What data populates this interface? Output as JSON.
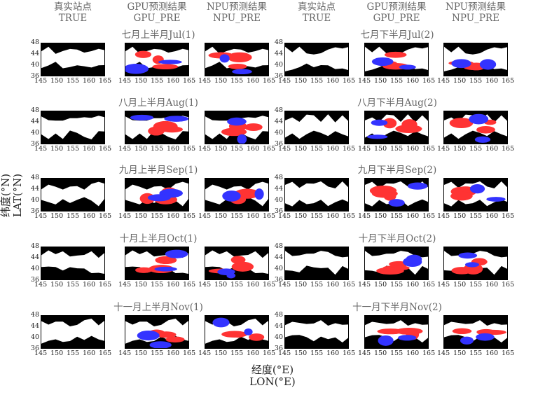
{
  "column_headers": [
    {
      "cn": "真实站点",
      "en": "TRUE"
    },
    {
      "cn": "GPU预测结果",
      "en": "GPU_PRE"
    },
    {
      "cn": "NPU预测结果",
      "en": "NPU_PRE"
    },
    {
      "cn": "真实站点",
      "en": "TRUE"
    },
    {
      "cn": "GPU预测结果",
      "en": "GPU_PRE"
    },
    {
      "cn": "NPU预测结果",
      "en": "NPU_PRE"
    }
  ],
  "chart_data": {
    "type": "heatmap",
    "y_axis": {
      "label_cn": "纬度(°N)",
      "label_en": "LAT(°N)",
      "ticks": [
        36,
        40,
        44,
        48
      ],
      "range": [
        36,
        48
      ]
    },
    "x_axis": {
      "label_cn": "经度(°E)",
      "label_en": "LON(°E)",
      "ticks": [
        145,
        150,
        155,
        160,
        165
      ],
      "range": [
        145,
        165
      ]
    },
    "colors": {
      "background": "#000000",
      "station": "#ffffff",
      "overestimate": "#ff3333",
      "underestimate": "#3333ff"
    },
    "periods": [
      {
        "left": "七月上半月Jul(1)",
        "right": "七月下半月Jul(2)"
      },
      {
        "left": "八月上半月Aug(1)",
        "right": "八月下半月Aug(2)"
      },
      {
        "left": "九月上半月Sep(1)",
        "right": "九月下半月Sep(2)"
      },
      {
        "left": "十月上半月Oct(1)",
        "right": "十月下半月Oct(2)"
      },
      {
        "left": "十一月上半月Nov(1)",
        "right": "十一月下半月Nov(2)"
      }
    ]
  }
}
